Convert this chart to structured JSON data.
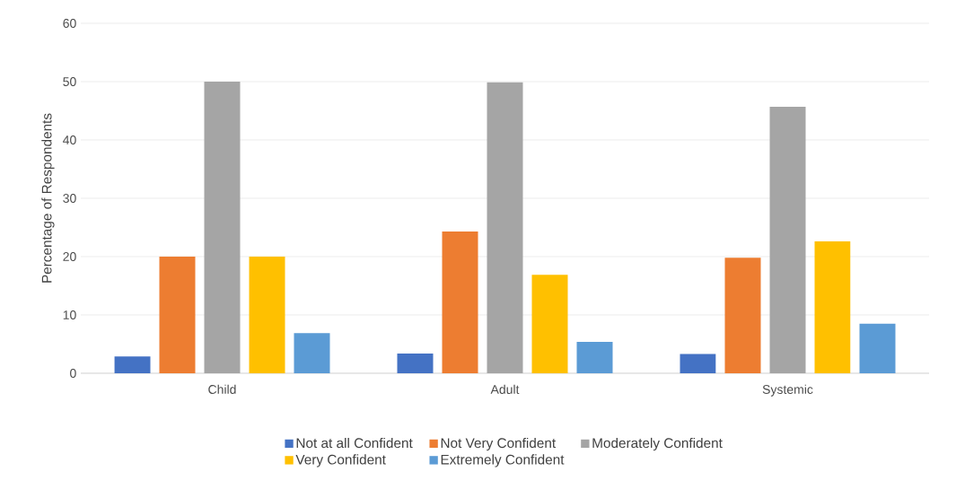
{
  "chart_data": {
    "type": "bar",
    "ylabel": "Percentage of Respondents",
    "categories": [
      "Child",
      "Adult",
      "Systemic"
    ],
    "series": [
      {
        "name": "Not at all Confident",
        "color": "#4472c4",
        "values": [
          2.9,
          3.4,
          3.3
        ]
      },
      {
        "name": "Not Very Confident",
        "color": "#ed7d31",
        "values": [
          20,
          24.3,
          19.8
        ]
      },
      {
        "name": "Moderately Confident",
        "color": "#a5a5a5",
        "values": [
          50,
          49.9,
          45.7
        ]
      },
      {
        "name": "Very Confident",
        "color": "#ffc000",
        "values": [
          20,
          16.9,
          22.6
        ]
      },
      {
        "name": "Extremely Confident",
        "color": "#5b9bd5",
        "values": [
          6.9,
          5.4,
          8.5
        ]
      }
    ],
    "ylim": [
      0,
      60
    ],
    "yticks": [
      0,
      10,
      20,
      30,
      40,
      50,
      60
    ],
    "grid": "y",
    "legend": "bottom"
  }
}
